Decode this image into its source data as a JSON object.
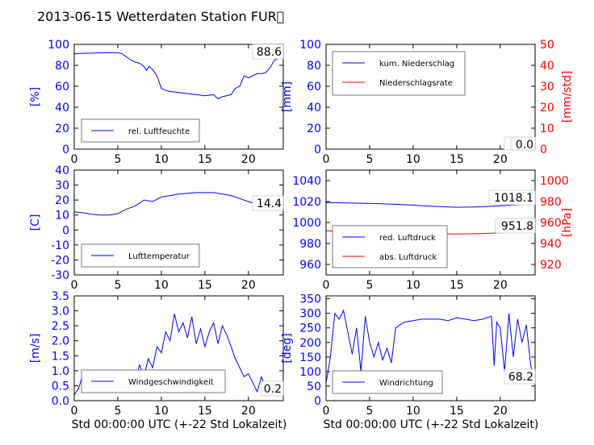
{
  "title": "2013-06-15 Wetterdaten Station FUR\u0000",
  "colors": {
    "blue": "#0000ff",
    "red": "#ff0000",
    "black": "#000000"
  },
  "chart_data": [
    {
      "id": "humidity",
      "type": "line",
      "xlim": [
        0,
        24
      ],
      "xticks": [
        0,
        5,
        10,
        15,
        20
      ],
      "ylim": [
        0,
        100
      ],
      "yticks": [
        0,
        20,
        40,
        60,
        80,
        100
      ],
      "ylabel": "[%]",
      "legend_position": "lower-left",
      "value_label": "88.6",
      "series": [
        {
          "name": "rel. Luftfeuchte",
          "color": "#0000ff",
          "x": [
            0,
            1,
            2,
            3,
            4,
            5,
            5.5,
            6,
            6.5,
            7,
            7.5,
            8,
            8.3,
            8.6,
            9,
            9.5,
            10,
            10.5,
            11,
            12,
            13,
            14,
            15,
            16,
            16.5,
            17,
            18,
            18.5,
            19,
            19.5,
            20,
            21,
            21.5,
            22,
            22.5,
            23,
            24
          ],
          "values": [
            91,
            91.5,
            91.5,
            92,
            92,
            92,
            91,
            88,
            85,
            83,
            82,
            79,
            75,
            79,
            76,
            70,
            58,
            56,
            55,
            54,
            53,
            52,
            51,
            52,
            48,
            50,
            52,
            58,
            60,
            70,
            68,
            72,
            72,
            73,
            78,
            85,
            88.6
          ]
        }
      ]
    },
    {
      "id": "precipitation",
      "type": "line",
      "xlim": [
        0,
        24
      ],
      "xticks": [
        0,
        5,
        10,
        15,
        20
      ],
      "ylim": [
        0,
        100
      ],
      "yticks": [
        0,
        20,
        40,
        60,
        80,
        100
      ],
      "ylabel": "[mm]",
      "ylim_right": [
        0,
        50
      ],
      "yticks_right": [
        0,
        10,
        20,
        30,
        40,
        50
      ],
      "ylabel_right": "[mm/std]",
      "legend_position": "upper-left",
      "value_labels": [
        "0.0",
        "0.0"
      ],
      "series": [
        {
          "name": "kum. Niederschlag",
          "color": "#0000ff",
          "axis": "left",
          "x": [
            0,
            24
          ],
          "values": [
            0,
            0
          ]
        },
        {
          "name": "Niederschlagsrate",
          "color": "#ff0000",
          "axis": "right",
          "x": [
            0,
            24
          ],
          "values": [
            0,
            0
          ]
        }
      ]
    },
    {
      "id": "temperature",
      "type": "line",
      "xlim": [
        0,
        24
      ],
      "xticks": [
        0,
        5,
        10,
        15,
        20
      ],
      "ylim": [
        -30,
        40
      ],
      "yticks": [
        -30,
        -20,
        -10,
        0,
        10,
        20,
        30,
        40
      ],
      "ylabel": "[C]",
      "legend_position": "lower-left",
      "value_label": "14.4",
      "series": [
        {
          "name": "Lufttemperatur",
          "color": "#0000ff",
          "x": [
            0,
            1,
            2,
            3,
            4,
            5,
            6,
            7,
            8,
            9,
            10,
            11,
            12,
            13,
            14,
            15,
            16,
            17,
            18,
            19,
            20,
            21,
            22,
            23,
            24
          ],
          "values": [
            12,
            11.5,
            10.5,
            10,
            10,
            11,
            14,
            16,
            20,
            19,
            22,
            23,
            24,
            24.5,
            25,
            25,
            25,
            24,
            23,
            21,
            19,
            17,
            16,
            15,
            14.4
          ]
        }
      ]
    },
    {
      "id": "pressure",
      "type": "line",
      "xlim": [
        0,
        24
      ],
      "xticks": [
        0,
        5,
        10,
        15,
        20
      ],
      "ylim": [
        950,
        1050
      ],
      "yticks": [
        960,
        980,
        1000,
        1020,
        1040
      ],
      "ylim_right": [
        910,
        1010
      ],
      "yticks_right": [
        920,
        940,
        960,
        980,
        1000
      ],
      "ylabel_right": "[hPa]",
      "legend_position": "lower-left",
      "value_labels": [
        "1018.1",
        "951.8"
      ],
      "series": [
        {
          "name": "red. Luftdruck",
          "color": "#0000ff",
          "axis": "left",
          "x": [
            0,
            3,
            6,
            9,
            12,
            15,
            18,
            21,
            24
          ],
          "values": [
            1019,
            1018.5,
            1018,
            1017,
            1015.5,
            1014.5,
            1015,
            1016.5,
            1018.1
          ]
        },
        {
          "name": "abs. Luftdruck",
          "color": "#ff0000",
          "axis": "right",
          "x": [
            0,
            3,
            6,
            9,
            12,
            15,
            18,
            21,
            24
          ],
          "values": [
            952,
            951.5,
            950.5,
            950,
            949.5,
            949,
            949.5,
            950.5,
            951.8
          ]
        }
      ]
    },
    {
      "id": "wind-speed",
      "type": "line",
      "xlim": [
        0,
        24
      ],
      "xticks": [
        0,
        5,
        10,
        15,
        20
      ],
      "ylim": [
        0,
        3.5
      ],
      "yticks": [
        0.0,
        0.5,
        1.0,
        1.5,
        2.0,
        2.5,
        3.0,
        3.5
      ],
      "ylabel": "[m/s]",
      "legend_position": "lower-left",
      "value_label": "0.2",
      "series": [
        {
          "name": "Windgeschwindigkeit",
          "color": "#0000ff",
          "x": [
            0,
            0.5,
            1,
            1.5,
            2,
            3,
            4,
            5,
            6,
            6.5,
            7,
            7.5,
            8,
            8.5,
            9,
            9.5,
            10,
            10.5,
            11,
            11.5,
            12,
            12.5,
            13,
            13.5,
            14,
            14.5,
            15,
            15.5,
            16,
            16.5,
            17,
            17.5,
            18,
            18.5,
            19,
            19.5,
            20,
            20.5,
            21,
            21.5,
            22,
            23,
            24
          ],
          "values": [
            0.2,
            0.4,
            0.9,
            0.3,
            0.6,
            0.3,
            0.5,
            0.3,
            0.5,
            0.9,
            0.6,
            1.2,
            0.8,
            1.4,
            1.1,
            1.8,
            1.6,
            2.3,
            2.0,
            2.9,
            2.3,
            2.6,
            2.1,
            2.8,
            1.9,
            2.4,
            1.8,
            2.3,
            2.6,
            1.9,
            2.5,
            2.2,
            1.8,
            1.4,
            1.1,
            0.8,
            0.9,
            0.6,
            0.3,
            0.8,
            0.4,
            0.3,
            0.2
          ]
        }
      ]
    },
    {
      "id": "wind-direction",
      "type": "line",
      "xlim": [
        0,
        24
      ],
      "xticks": [
        0,
        5,
        10,
        15,
        20
      ],
      "ylim": [
        0,
        360
      ],
      "yticks": [
        0,
        50,
        100,
        150,
        200,
        250,
        300,
        350
      ],
      "ylabel": "[deg]",
      "legend_position": "lower-left",
      "value_label": "68.2",
      "series": [
        {
          "name": "Windrichtung",
          "color": "#0000ff",
          "x": [
            0,
            0.5,
            1,
            1.5,
            2,
            3,
            3.5,
            4,
            4.5,
            5,
            5.5,
            6,
            6.5,
            7,
            7.5,
            8,
            9,
            10,
            11,
            12,
            13,
            14,
            15,
            16,
            17,
            18,
            19,
            19.3,
            19.6,
            20,
            20.5,
            21,
            21.5,
            22,
            22.5,
            23,
            23.5,
            24
          ],
          "values": [
            60,
            150,
            300,
            280,
            310,
            160,
            250,
            100,
            290,
            200,
            150,
            200,
            140,
            180,
            130,
            250,
            270,
            275,
            280,
            280,
            280,
            275,
            285,
            280,
            275,
            280,
            290,
            120,
            270,
            250,
            100,
            300,
            150,
            280,
            200,
            260,
            120,
            68.2
          ]
        }
      ]
    }
  ],
  "axes": {
    "left": {
      "xlabel": "Std 00:00:00 UTC (+-22 Std Lokalzeit)"
    },
    "right": {
      "xlabel": "Std 00:00:00 UTC (+-22 Std Lokalzeit)"
    }
  }
}
